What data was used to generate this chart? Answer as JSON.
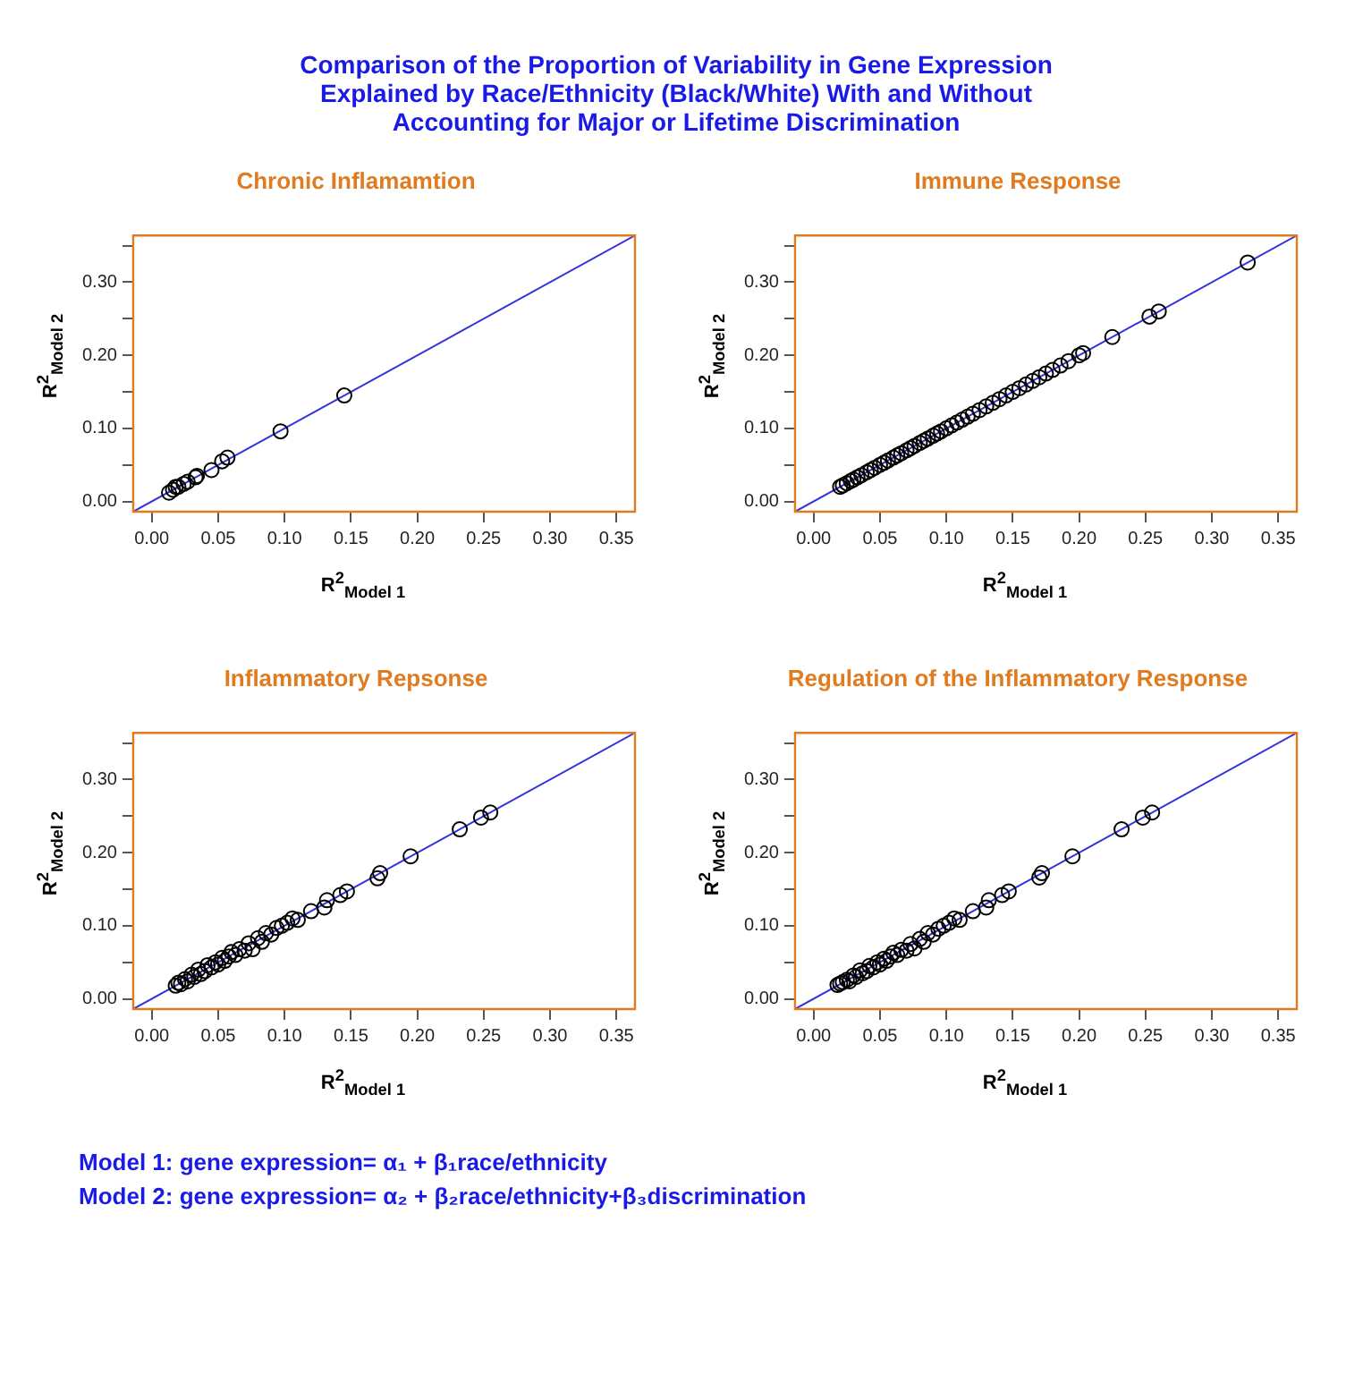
{
  "chart_data": [
    {
      "type": "other",
      "title": "Comparison of the Proportion of Variability in Gene Expression\nExplained by Race/Ethnicity (Black/White) With and Without\nAccounting for Major or Lifetime Discrimination",
      "annotations": [
        "Model 1: gene expression= α₁ + β₁race/ethnicity",
        "Model 2: gene expression= α₂ + β₂race/ethnicity+β₃discrimination"
      ]
    },
    {
      "type": "scatter",
      "title": "Chronic Inflamamtion",
      "xlabel": "R$^{2}$$_{Model 1}$",
      "ylabel": "R$^{2}$$_{Model 2}$",
      "xlim": [
        -0.014,
        0.364
      ],
      "ylim": [
        -0.014,
        0.364
      ],
      "xticks": [
        {
          "value": 0,
          "label": "0.00"
        },
        {
          "value": 0.05,
          "label": "0.05"
        },
        {
          "value": 0.1,
          "label": "0.10"
        },
        {
          "value": 0.15,
          "label": "0.15"
        },
        {
          "value": 0.2,
          "label": "0.20"
        },
        {
          "value": 0.25,
          "label": "0.25"
        },
        {
          "value": 0.3,
          "label": "0.30"
        },
        {
          "value": 0.35,
          "label": "0.35"
        }
      ],
      "yticks": [
        {
          "value": 0,
          "label": "0.00"
        },
        {
          "value": 0.05,
          "label": null
        },
        {
          "value": 0.1,
          "label": "0.10"
        },
        {
          "value": 0.15,
          "label": null
        },
        {
          "value": 0.2,
          "label": "0.20"
        },
        {
          "value": 0.25,
          "label": null
        },
        {
          "value": 0.3,
          "label": "0.30"
        },
        {
          "value": 0.35,
          "label": null
        }
      ],
      "series": [
        {
          "type": "scatter",
          "marker": "circle",
          "color": "#000000",
          "x": [
            0.013,
            0.016,
            0.018,
            0.02,
            0.024,
            0.027,
            0.033,
            0.034,
            0.045,
            0.053,
            0.057,
            0.097,
            0.145
          ],
          "values": [
            0.012,
            0.016,
            0.02,
            0.02,
            0.024,
            0.027,
            0.033,
            0.035,
            0.043,
            0.055,
            0.06,
            0.096,
            0.145
          ]
        },
        {
          "type": "line",
          "color": "#3333dd",
          "x": [
            -0.014,
            0.364
          ],
          "values": [
            -0.014,
            0.364
          ]
        }
      ]
    },
    {
      "type": "scatter",
      "title": "Immune Response",
      "xlabel": "R$^{2}$$_{Model 1}$",
      "ylabel": "R$^{2}$$_{Model 2}$",
      "xlim": [
        -0.014,
        0.364
      ],
      "ylim": [
        -0.014,
        0.364
      ],
      "xticks": [
        {
          "value": 0,
          "label": "0.00"
        },
        {
          "value": 0.05,
          "label": "0.05"
        },
        {
          "value": 0.1,
          "label": "0.10"
        },
        {
          "value": 0.15,
          "label": "0.15"
        },
        {
          "value": 0.2,
          "label": "0.20"
        },
        {
          "value": 0.25,
          "label": "0.25"
        },
        {
          "value": 0.3,
          "label": "0.30"
        },
        {
          "value": 0.35,
          "label": "0.35"
        }
      ],
      "yticks": [
        {
          "value": 0,
          "label": "0.00"
        },
        {
          "value": 0.05,
          "label": null
        },
        {
          "value": 0.1,
          "label": "0.10"
        },
        {
          "value": 0.15,
          "label": null
        },
        {
          "value": 0.2,
          "label": "0.20"
        },
        {
          "value": 0.25,
          "label": null
        },
        {
          "value": 0.3,
          "label": "0.30"
        },
        {
          "value": 0.35,
          "label": null
        }
      ],
      "series": [
        {
          "type": "scatter",
          "marker": "circle",
          "color": "#000000",
          "x": [
            0.02,
            0.022,
            0.025,
            0.028,
            0.03,
            0.033,
            0.036,
            0.04,
            0.043,
            0.046,
            0.05,
            0.053,
            0.056,
            0.06,
            0.063,
            0.066,
            0.07,
            0.073,
            0.076,
            0.08,
            0.083,
            0.086,
            0.09,
            0.093,
            0.096,
            0.1,
            0.104,
            0.108,
            0.112,
            0.116,
            0.12,
            0.125,
            0.13,
            0.135,
            0.14,
            0.145,
            0.15,
            0.155,
            0.16,
            0.165,
            0.17,
            0.175,
            0.18,
            0.186,
            0.192,
            0.2,
            0.203,
            0.225,
            0.253,
            0.26,
            0.327
          ],
          "values": [
            0.02,
            0.022,
            0.025,
            0.028,
            0.03,
            0.033,
            0.036,
            0.04,
            0.043,
            0.046,
            0.05,
            0.053,
            0.056,
            0.06,
            0.063,
            0.066,
            0.07,
            0.073,
            0.076,
            0.08,
            0.083,
            0.086,
            0.09,
            0.093,
            0.096,
            0.1,
            0.104,
            0.108,
            0.112,
            0.116,
            0.12,
            0.125,
            0.13,
            0.135,
            0.14,
            0.145,
            0.15,
            0.155,
            0.16,
            0.165,
            0.17,
            0.175,
            0.18,
            0.186,
            0.192,
            0.2,
            0.203,
            0.225,
            0.253,
            0.26,
            0.327
          ]
        },
        {
          "type": "line",
          "color": "#3333dd",
          "x": [
            -0.014,
            0.364
          ],
          "values": [
            -0.014,
            0.364
          ]
        }
      ]
    },
    {
      "type": "scatter",
      "title": "Inflammatory Repsonse",
      "xlabel": "R$^{2}$$_{Model 1}$",
      "ylabel": "R$^{2}$$_{Model 2}$",
      "xlim": [
        -0.014,
        0.364
      ],
      "ylim": [
        -0.014,
        0.364
      ],
      "xticks": [
        {
          "value": 0,
          "label": "0.00"
        },
        {
          "value": 0.05,
          "label": "0.05"
        },
        {
          "value": 0.1,
          "label": "0.10"
        },
        {
          "value": 0.15,
          "label": "0.15"
        },
        {
          "value": 0.2,
          "label": "0.20"
        },
        {
          "value": 0.25,
          "label": "0.25"
        },
        {
          "value": 0.3,
          "label": "0.30"
        },
        {
          "value": 0.35,
          "label": "0.35"
        }
      ],
      "yticks": [
        {
          "value": 0,
          "label": "0.00"
        },
        {
          "value": 0.05,
          "label": null
        },
        {
          "value": 0.1,
          "label": "0.10"
        },
        {
          "value": 0.15,
          "label": null
        },
        {
          "value": 0.2,
          "label": "0.20"
        },
        {
          "value": 0.25,
          "label": null
        },
        {
          "value": 0.3,
          "label": "0.30"
        },
        {
          "value": 0.35,
          "label": null
        }
      ],
      "series": [
        {
          "type": "scatter",
          "marker": "circle",
          "color": "#000000",
          "x": [
            0.018,
            0.02,
            0.022,
            0.025,
            0.027,
            0.03,
            0.032,
            0.035,
            0.037,
            0.04,
            0.042,
            0.045,
            0.048,
            0.05,
            0.053,
            0.055,
            0.058,
            0.06,
            0.063,
            0.066,
            0.07,
            0.073,
            0.076,
            0.08,
            0.083,
            0.086,
            0.09,
            0.094,
            0.098,
            0.102,
            0.106,
            0.11,
            0.12,
            0.13,
            0.132,
            0.142,
            0.147,
            0.17,
            0.172,
            0.195,
            0.232,
            0.248,
            0.255
          ],
          "values": [
            0.018,
            0.022,
            0.02,
            0.027,
            0.024,
            0.033,
            0.03,
            0.04,
            0.034,
            0.038,
            0.046,
            0.043,
            0.05,
            0.047,
            0.056,
            0.052,
            0.058,
            0.064,
            0.06,
            0.068,
            0.066,
            0.076,
            0.068,
            0.083,
            0.078,
            0.09,
            0.088,
            0.097,
            0.1,
            0.104,
            0.11,
            0.108,
            0.12,
            0.125,
            0.135,
            0.142,
            0.147,
            0.165,
            0.172,
            0.195,
            0.232,
            0.248,
            0.255
          ]
        },
        {
          "type": "line",
          "color": "#3333dd",
          "x": [
            -0.014,
            0.364
          ],
          "values": [
            -0.014,
            0.364
          ]
        }
      ]
    },
    {
      "type": "scatter",
      "title": "Regulation of the Inflammatory Response",
      "xlabel": "R$^{2}$$_{Model 1}$",
      "ylabel": "R$^{2}$$_{Model 2}$",
      "xlim": [
        -0.014,
        0.364
      ],
      "ylim": [
        -0.014,
        0.364
      ],
      "xticks": [
        {
          "value": 0,
          "label": "0.00"
        },
        {
          "value": 0.05,
          "label": "0.05"
        },
        {
          "value": 0.1,
          "label": "0.10"
        },
        {
          "value": 0.15,
          "label": "0.15"
        },
        {
          "value": 0.2,
          "label": "0.20"
        },
        {
          "value": 0.25,
          "label": "0.25"
        },
        {
          "value": 0.3,
          "label": "0.30"
        },
        {
          "value": 0.35,
          "label": "0.35"
        }
      ],
      "yticks": [
        {
          "value": 0,
          "label": "0.00"
        },
        {
          "value": 0.05,
          "label": null
        },
        {
          "value": 0.1,
          "label": "0.10"
        },
        {
          "value": 0.15,
          "label": null
        },
        {
          "value": 0.2,
          "label": "0.20"
        },
        {
          "value": 0.25,
          "label": null
        },
        {
          "value": 0.3,
          "label": "0.30"
        },
        {
          "value": 0.35,
          "label": null
        }
      ],
      "series": [
        {
          "type": "scatter",
          "marker": "circle",
          "color": "#000000",
          "x": [
            0.018,
            0.02,
            0.022,
            0.025,
            0.027,
            0.03,
            0.032,
            0.035,
            0.037,
            0.04,
            0.042,
            0.045,
            0.048,
            0.05,
            0.053,
            0.055,
            0.058,
            0.06,
            0.063,
            0.066,
            0.07,
            0.073,
            0.076,
            0.08,
            0.083,
            0.086,
            0.09,
            0.094,
            0.098,
            0.102,
            0.106,
            0.11,
            0.12,
            0.13,
            0.132,
            0.142,
            0.147,
            0.17,
            0.172,
            0.195,
            0.232,
            0.248,
            0.255
          ],
          "values": [
            0.019,
            0.021,
            0.023,
            0.026,
            0.024,
            0.032,
            0.03,
            0.039,
            0.035,
            0.038,
            0.045,
            0.043,
            0.05,
            0.047,
            0.055,
            0.052,
            0.058,
            0.063,
            0.06,
            0.067,
            0.066,
            0.075,
            0.069,
            0.082,
            0.078,
            0.09,
            0.088,
            0.096,
            0.1,
            0.104,
            0.11,
            0.108,
            0.12,
            0.125,
            0.135,
            0.142,
            0.147,
            0.166,
            0.172,
            0.195,
            0.232,
            0.248,
            0.255
          ]
        },
        {
          "type": "line",
          "color": "#3333dd",
          "x": [
            -0.014,
            0.364
          ],
          "values": [
            -0.014,
            0.364
          ]
        }
      ]
    }
  ]
}
